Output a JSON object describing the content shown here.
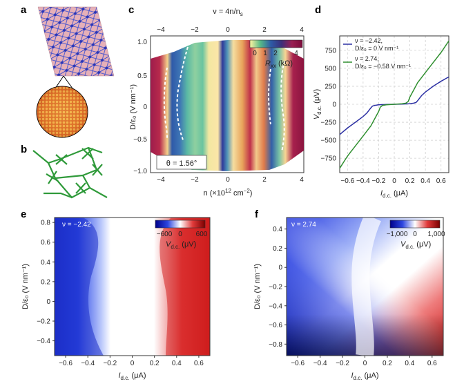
{
  "panel_labels": {
    "a": "a",
    "b": "b",
    "c": "c",
    "d": "d",
    "e": "e",
    "f": "f"
  },
  "panel_c": {
    "top_axis_label": "ν = 4n/n",
    "top_axis_label_sub": "s",
    "top_ticks": [
      "−4",
      "−2",
      "0",
      "2",
      "4"
    ],
    "x_label": "n (×10",
    "x_label_sup": "12",
    "x_label_end": " cm",
    "x_label_sup2": "−2",
    "x_label_close": ")",
    "x_ticks": [
      "−4",
      "−2",
      "0",
      "2",
      "4"
    ],
    "y_label": "D/ε₀ (V nm⁻¹)",
    "y_ticks": [
      "1.0",
      "0.5",
      "0",
      "−0.5",
      "−1.0"
    ],
    "colorbar_label": "R",
    "colorbar_label_sub": "xx",
    "colorbar_unit": " (kΩ)",
    "colorbar_ticks": [
      "0",
      "1",
      "2",
      "4"
    ],
    "theta_label": "θ = 1.56°"
  },
  "chart_data": [
    {
      "type": "line",
      "panel": "d",
      "xlabel": "I",
      "xlabel_sub": "d.c.",
      "xlabel_unit": " (μA)",
      "ylabel": "V",
      "ylabel_sub": "d.c.",
      "ylabel_unit": " (μV)",
      "x_ticks": [
        "−0.6",
        "−0.4",
        "−0.2",
        "0",
        "0.2",
        "0.4",
        "0.6"
      ],
      "y_ticks": [
        "750",
        "500",
        "250",
        "0",
        "−250",
        "−500",
        "−750"
      ],
      "xlim": [
        -0.7,
        0.7
      ],
      "ylim": [
        -950,
        950
      ],
      "grid": true,
      "legend_position": "top-left",
      "series": [
        {
          "legend_line1": "ν = −2.42,",
          "legend_line2": "D/ε₀ = 0 V nm⁻¹",
          "color": "#2b2fa3",
          "x": [
            -0.7,
            -0.6,
            -0.5,
            -0.4,
            -0.35,
            -0.3,
            -0.28,
            -0.25,
            -0.2,
            -0.1,
            0,
            0.1,
            0.2,
            0.25,
            0.28,
            0.3,
            0.35,
            0.4,
            0.5,
            0.6,
            0.7
          ],
          "y": [
            -420,
            -330,
            -250,
            -170,
            -120,
            -50,
            -25,
            -15,
            -8,
            -3,
            0,
            3,
            8,
            15,
            25,
            50,
            120,
            170,
            250,
            320,
            380
          ]
        },
        {
          "legend_line1": "ν = 2.74,",
          "legend_line2": "D/ε₀ = −0.58 V nm⁻¹",
          "color": "#2f8f2f",
          "x": [
            -0.7,
            -0.6,
            -0.5,
            -0.4,
            -0.3,
            -0.2,
            -0.18,
            -0.15,
            -0.1,
            0,
            0.1,
            0.15,
            0.18,
            0.2,
            0.3,
            0.4,
            0.5,
            0.6,
            0.7
          ],
          "y": [
            -890,
            -720,
            -580,
            -440,
            -300,
            -100,
            -40,
            -15,
            -8,
            0,
            8,
            15,
            40,
            100,
            300,
            440,
            580,
            720,
            880
          ]
        }
      ]
    },
    {
      "type": "heatmap",
      "panel": "e",
      "annotation": "ν = −2.42",
      "xlabel": "I",
      "xlabel_sub": "d.c.",
      "xlabel_unit": " (μA)",
      "ylabel": "D/ε₀ (V nm⁻¹)",
      "x_ticks": [
        "−0.6",
        "−0.4",
        "−0.2",
        "0",
        "0.2",
        "0.4",
        "0.6"
      ],
      "y_ticks": [
        "0.8",
        "0.6",
        "0.4",
        "0.2",
        "0",
        "−0.2",
        "−0.4"
      ],
      "xlim": [
        -0.7,
        0.7
      ],
      "ylim": [
        -0.55,
        0.85
      ],
      "colorbar_ticks": [
        "−600",
        "0",
        "600"
      ],
      "colorbar_label": "V",
      "colorbar_label_sub": "d.c.",
      "colorbar_unit": " (μV)",
      "colors": {
        "neg": "#1a2fd4",
        "zero": "#ffffff",
        "pos": "#d41a1a"
      }
    },
    {
      "type": "heatmap",
      "panel": "f",
      "annotation": "ν = 2.74",
      "xlabel": "I",
      "xlabel_sub": "d.c.",
      "xlabel_unit": " (μA)",
      "ylabel": "D/ε₀ (V nm⁻¹)",
      "x_ticks": [
        "−0.6",
        "−0.4",
        "−0.2",
        "0",
        "0.2",
        "0.4",
        "0.6"
      ],
      "y_ticks": [
        "0.4",
        "0.2",
        "0",
        "−0.2",
        "−0.4",
        "−0.6",
        "−0.8"
      ],
      "xlim": [
        -0.7,
        0.7
      ],
      "ylim": [
        -0.92,
        0.52
      ],
      "colorbar_ticks": [
        "−1,000",
        "0",
        "1,000"
      ],
      "colorbar_label": "V",
      "colorbar_label_sub": "d.c.",
      "colorbar_unit": " (μV)",
      "colors": {
        "neg": "#1a2fd4",
        "zero": "#ffffff",
        "pos": "#d41a1a"
      }
    }
  ]
}
